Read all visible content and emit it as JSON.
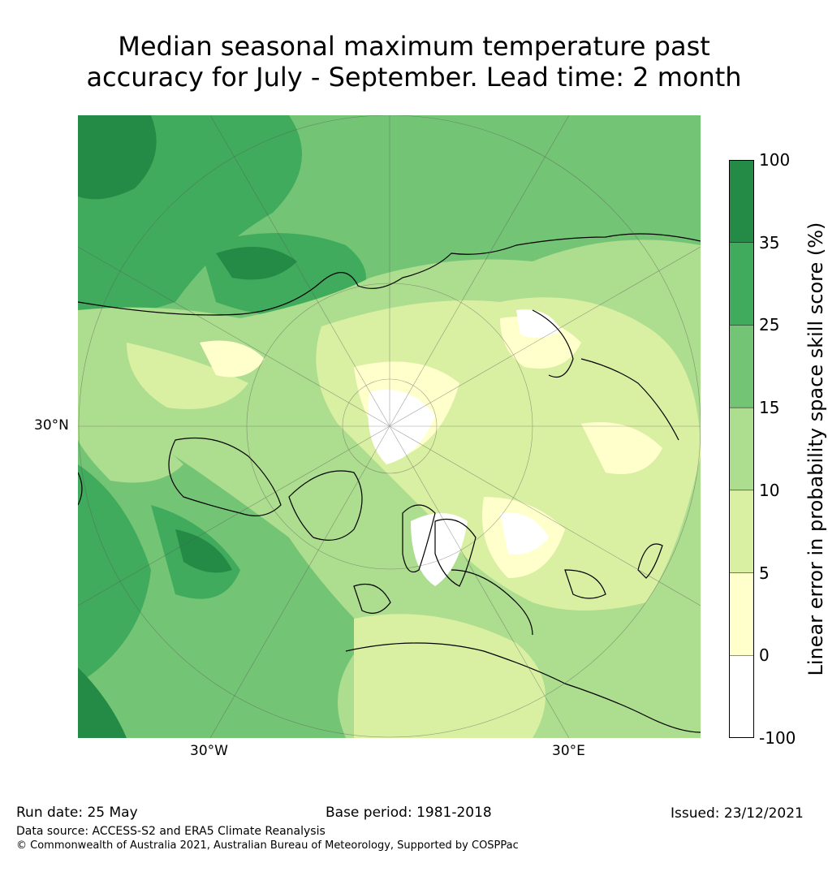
{
  "title_line1": "Median seasonal maximum temperature past",
  "title_line2": "accuracy for July - September. Lead time: 2 month",
  "map": {
    "labels": {
      "lat": "30°N",
      "lon_west": "30°W",
      "lon_east": "30°E"
    },
    "colors": {
      "ocean_mid": "#74c476",
      "land_light": "#d9f0a3",
      "land_pale": "#ffffcc",
      "dark": "#238b45"
    }
  },
  "colorbar": {
    "label": "Linear error in probability space skill score (%)",
    "ticks": [
      "100",
      "35",
      "25",
      "15",
      "10",
      "5",
      "0",
      "-100"
    ],
    "bands": [
      {
        "from": "35",
        "to": "100",
        "color": "#238b45"
      },
      {
        "from": "25",
        "to": "35",
        "color": "#41ab5d"
      },
      {
        "from": "15",
        "to": "25",
        "color": "#74c476"
      },
      {
        "from": "10",
        "to": "15",
        "color": "#addd8e"
      },
      {
        "from": "5",
        "to": "10",
        "color": "#d9f0a3"
      },
      {
        "from": "0",
        "to": "5",
        "color": "#ffffcc"
      },
      {
        "from": "-100",
        "to": "0",
        "color": "#ffffff"
      }
    ]
  },
  "footer": {
    "run_date": "Run date: 25 May",
    "base_period": "Base period: 1981-2018",
    "issued": "Issued: 23/12/2021",
    "data_source": "Data source: ACCESS-S2 and ERA5 Climate Reanalysis",
    "copyright": "© Commonwealth of Australia 2021, Australian Bureau of Meteorology, Supported by COSPPac"
  }
}
